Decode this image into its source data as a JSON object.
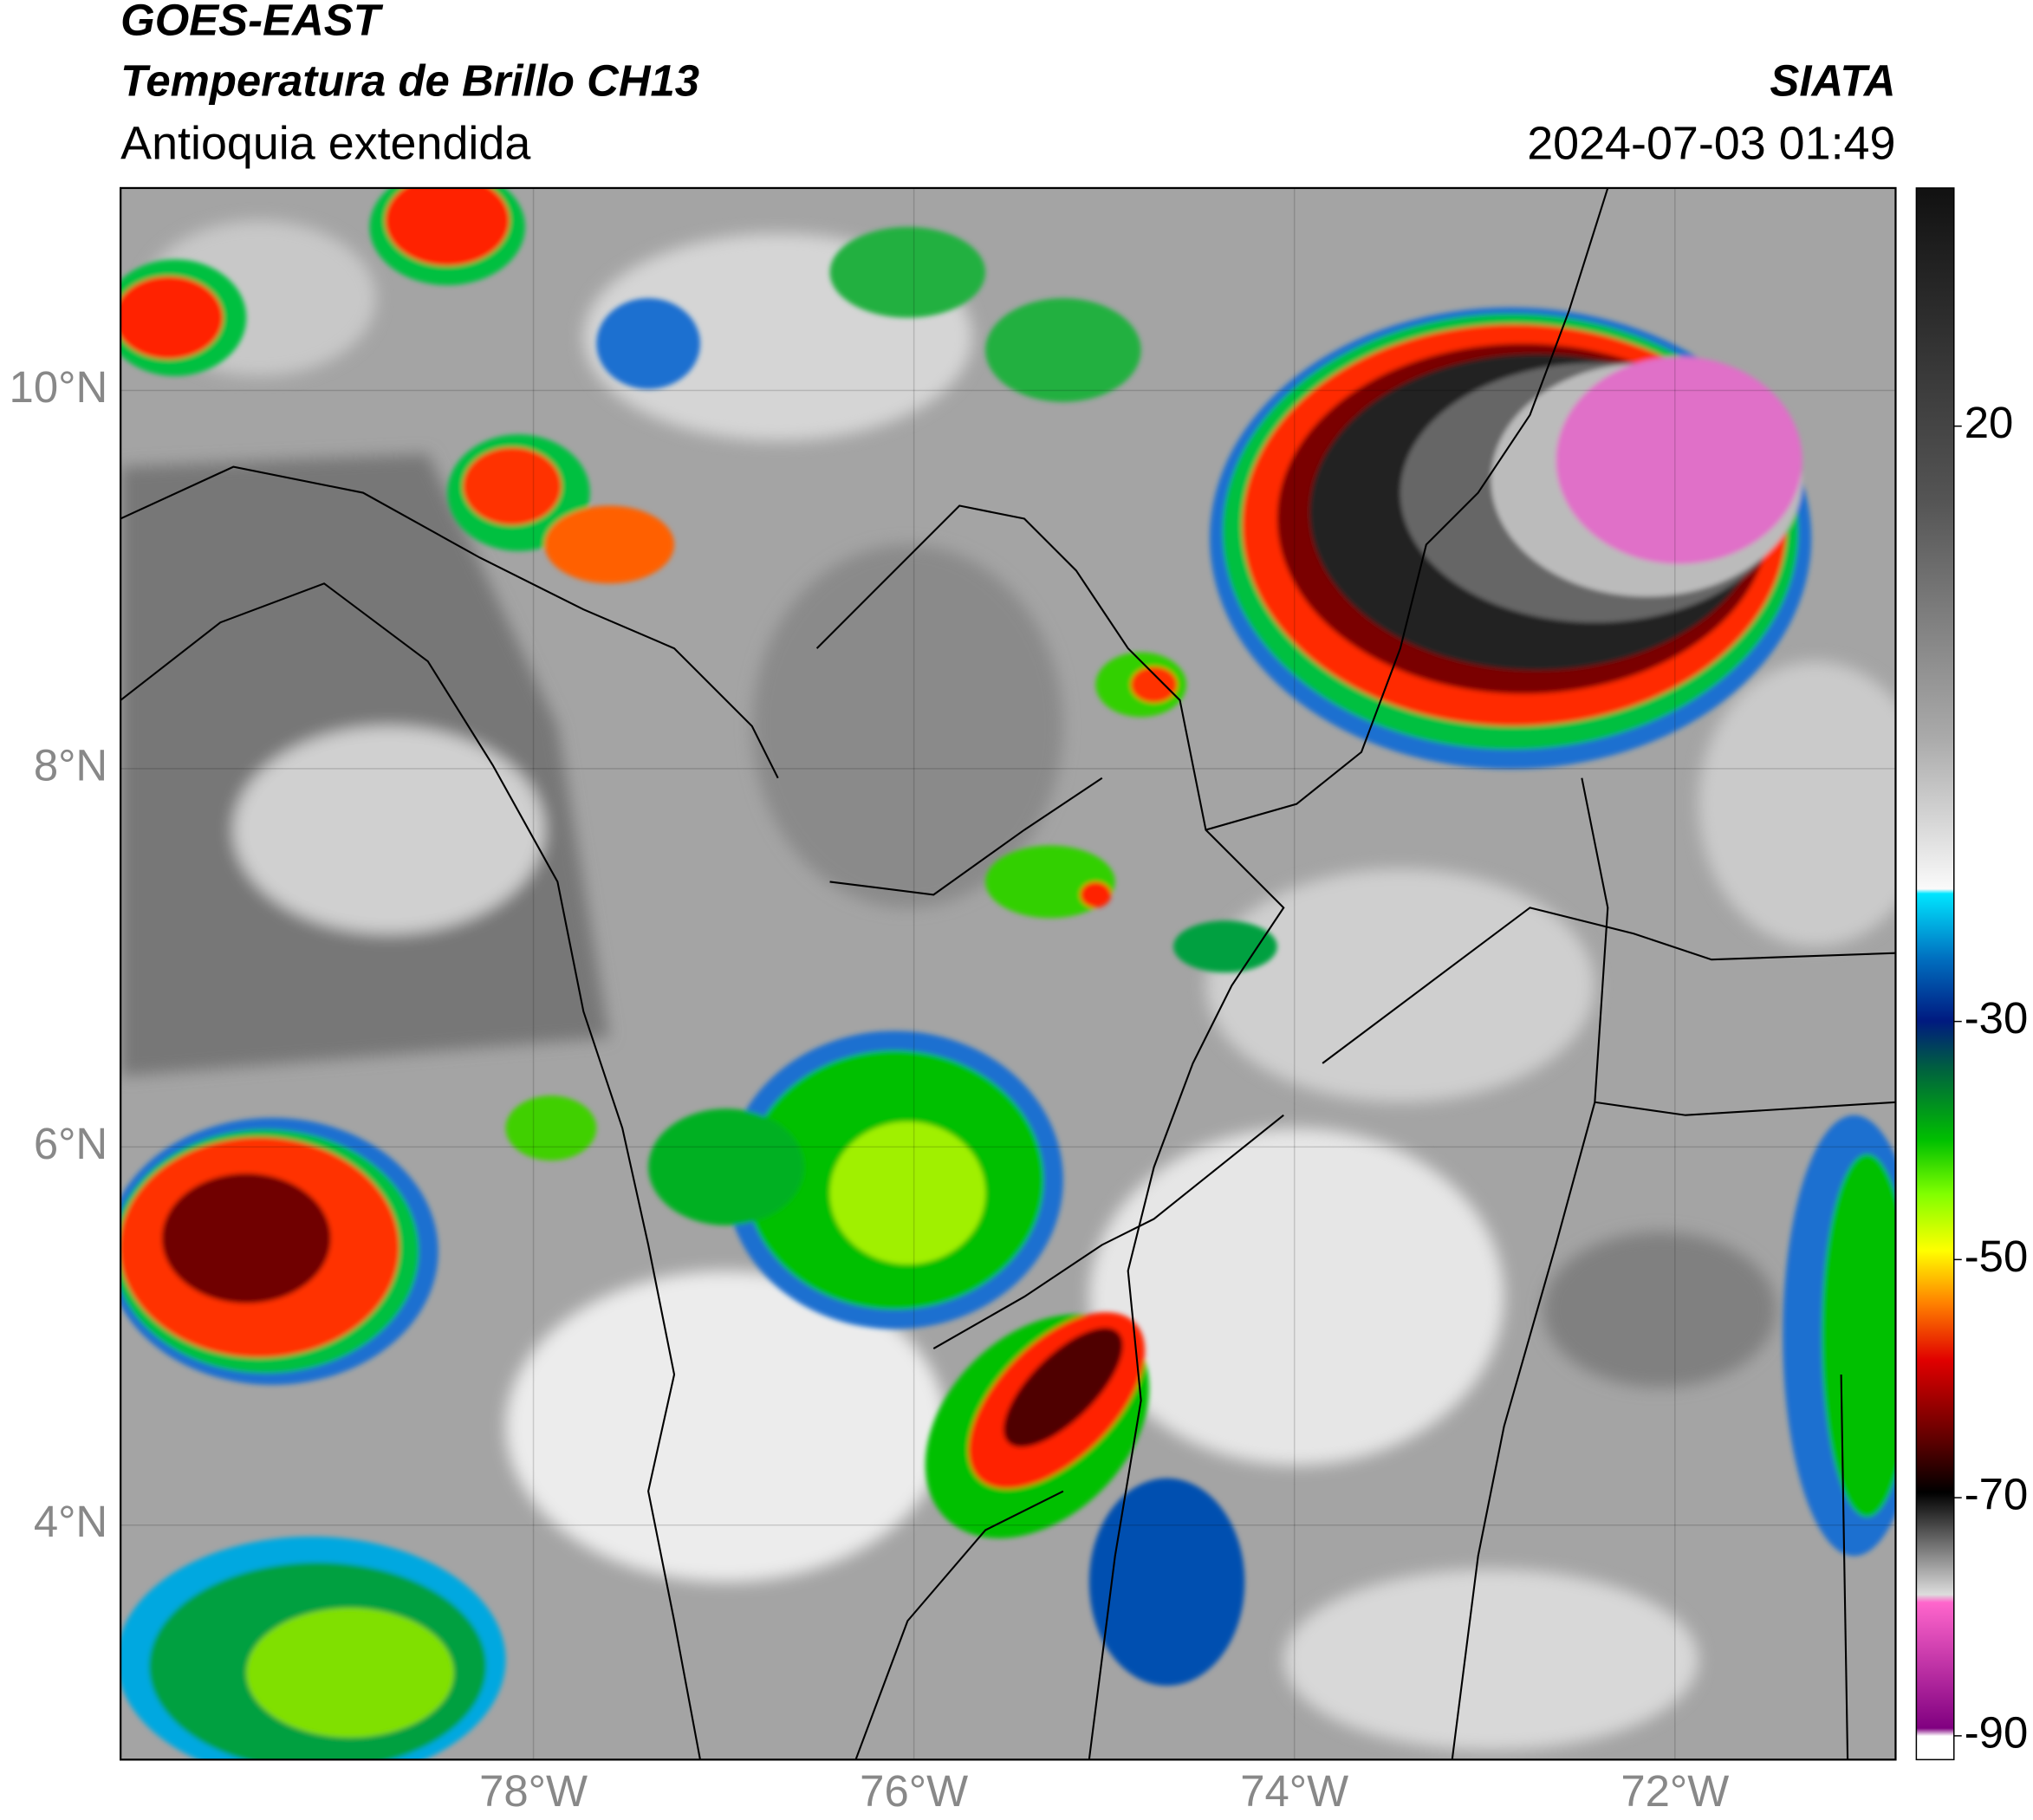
{
  "header": {
    "title": "GOES-EAST",
    "subtitle": "Temperatura de Brillo CH13",
    "region": "Antioquia extendida",
    "source": "SIATA",
    "datetime": "2024-07-03 01:49"
  },
  "map": {
    "xlim": [
      -80.17,
      -70.84
    ],
    "ylim": [
      2.76,
      11.07
    ],
    "xticks": [
      {
        "value": -78,
        "label": "78°W"
      },
      {
        "value": -76,
        "label": "76°W"
      },
      {
        "value": -74,
        "label": "74°W"
      },
      {
        "value": -72,
        "label": "72°W"
      }
    ],
    "yticks": [
      {
        "value": 4,
        "label": "4°N"
      },
      {
        "value": 6,
        "label": "6°N"
      },
      {
        "value": 8,
        "label": "8°N"
      },
      {
        "value": 10,
        "label": "10°N"
      }
    ],
    "grid": true
  },
  "colorbar": {
    "lim": [
      -92,
      40
    ],
    "ticks": [
      20,
      -30,
      -50,
      -70,
      -90
    ]
  }
}
